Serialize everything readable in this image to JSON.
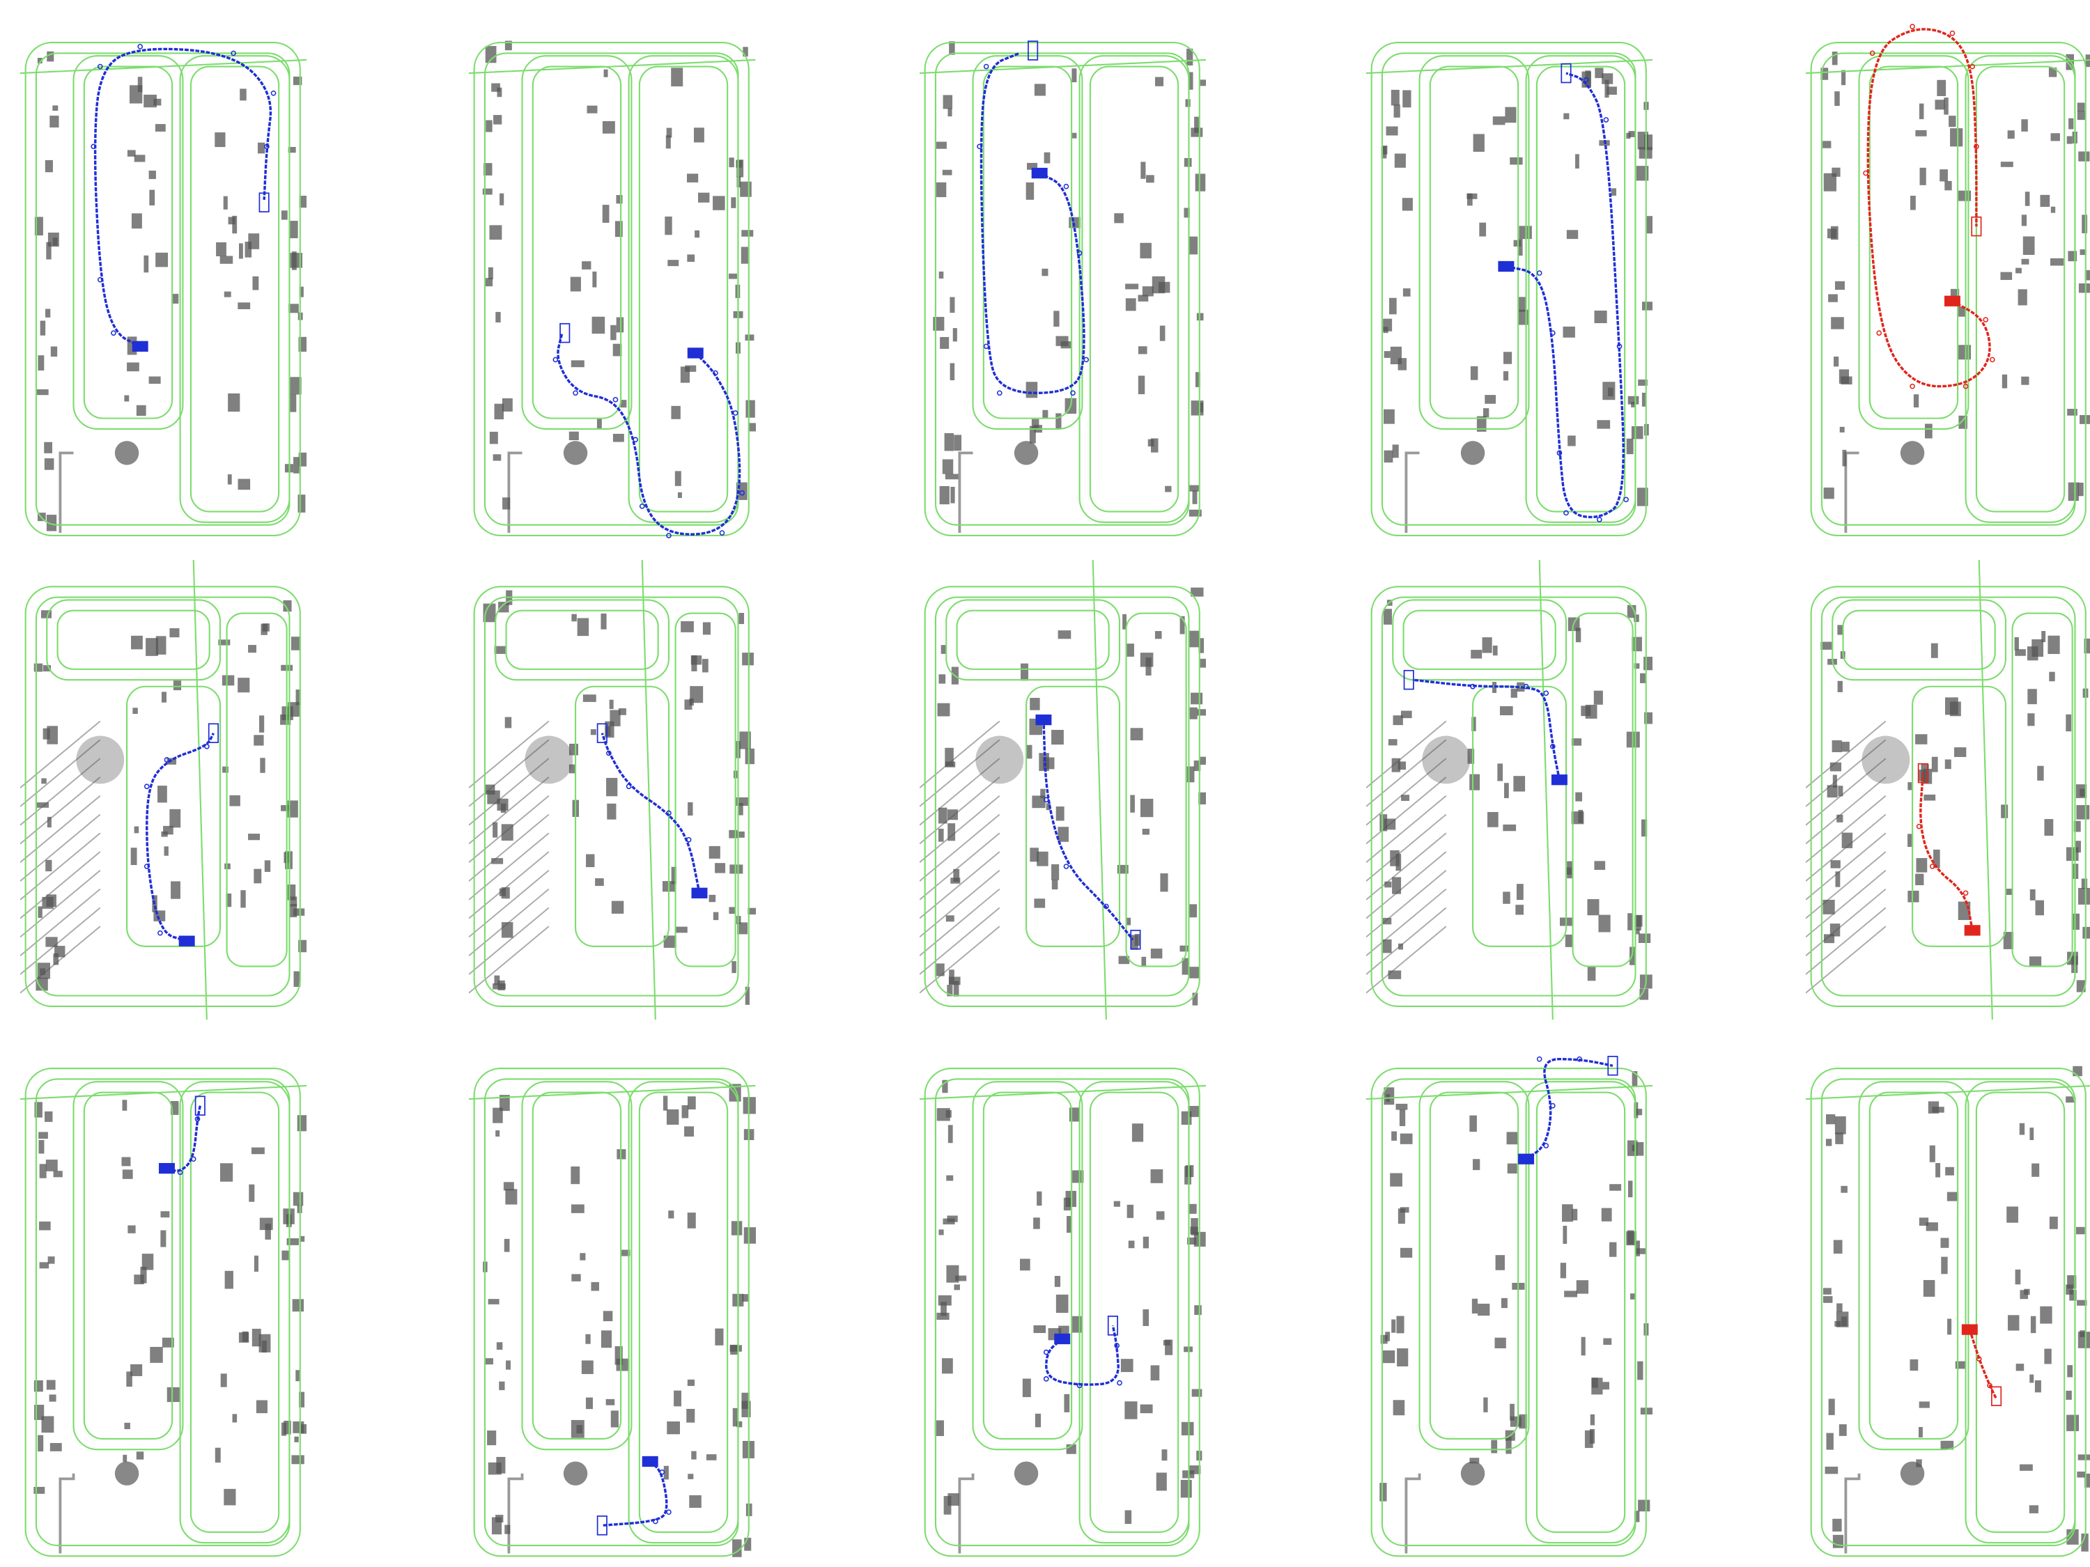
{
  "colors": {
    "road_network": "#7ddc6e",
    "buildings": "#555555",
    "trajectory_primary": "#1f2fd6",
    "trajectory_highlight": "#e0261c"
  },
  "grid": {
    "rows": 3,
    "columns": 5
  },
  "panels": [
    {
      "row": 1,
      "col": 1,
      "map": "A",
      "trajectory_color": "blue"
    },
    {
      "row": 1,
      "col": 2,
      "map": "A",
      "trajectory_color": "blue"
    },
    {
      "row": 1,
      "col": 3,
      "map": "A",
      "trajectory_color": "blue"
    },
    {
      "row": 1,
      "col": 4,
      "map": "A",
      "trajectory_color": "blue"
    },
    {
      "row": 1,
      "col": 5,
      "map": "A",
      "trajectory_color": "red"
    },
    {
      "row": 2,
      "col": 1,
      "map": "B",
      "trajectory_color": "blue"
    },
    {
      "row": 2,
      "col": 2,
      "map": "B",
      "trajectory_color": "blue"
    },
    {
      "row": 2,
      "col": 3,
      "map": "B",
      "trajectory_color": "blue"
    },
    {
      "row": 2,
      "col": 4,
      "map": "B",
      "trajectory_color": "blue"
    },
    {
      "row": 2,
      "col": 5,
      "map": "B",
      "trajectory_color": "red"
    },
    {
      "row": 3,
      "col": 1,
      "map": "A",
      "trajectory_color": "blue"
    },
    {
      "row": 3,
      "col": 2,
      "map": "A",
      "trajectory_color": "blue"
    },
    {
      "row": 3,
      "col": 3,
      "map": "A",
      "trajectory_color": "blue"
    },
    {
      "row": 3,
      "col": 4,
      "map": "A",
      "trajectory_color": "blue"
    },
    {
      "row": 3,
      "col": 5,
      "map": "A",
      "trajectory_color": "red"
    }
  ]
}
